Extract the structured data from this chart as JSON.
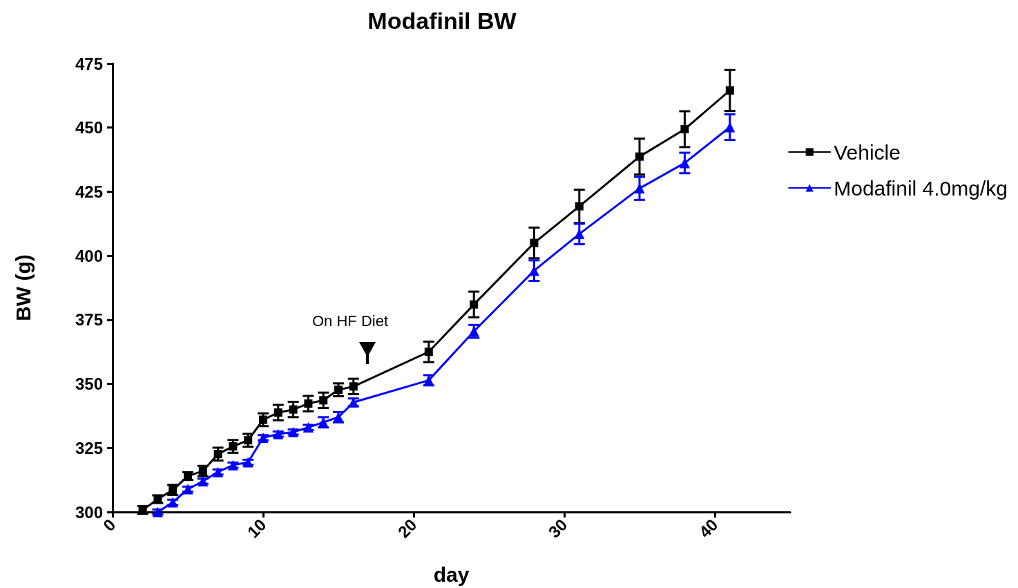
{
  "chart_data": {
    "type": "line",
    "title": "Modafinil BW",
    "xlabel": "day",
    "ylabel": "BW (g)",
    "xlim": [
      0,
      45
    ],
    "xticks": [
      0,
      10,
      20,
      30,
      40
    ],
    "ylim": [
      300,
      475
    ],
    "yticks": [
      300,
      325,
      350,
      375,
      400,
      425,
      450,
      475
    ],
    "grid": false,
    "legend": "right",
    "line_style": "solid",
    "annotations": [
      "On HF Diet"
    ],
    "series": [
      {
        "name": "Vehicle",
        "color": "#000000",
        "marker": "square",
        "x": [
          2,
          3,
          4,
          5,
          6,
          7,
          8,
          9,
          10,
          11,
          12,
          13,
          14,
          15,
          16,
          21,
          24,
          28,
          31,
          35,
          38,
          41
        ],
        "values": [
          300.8,
          305,
          308.6,
          314,
          316,
          322.6,
          325.6,
          328,
          336,
          338.8,
          340,
          342.3,
          343.6,
          347.7,
          349,
          362.5,
          381,
          405,
          419.3,
          438.7,
          449.4,
          464.5
        ],
        "errors": [
          1.5,
          1.5,
          2,
          1.5,
          2,
          2.5,
          2.5,
          2.5,
          2.5,
          3,
          3,
          3,
          3,
          2.5,
          3,
          4,
          5,
          6,
          6.5,
          7,
          7,
          8
        ]
      },
      {
        "name": "Modafinil 4.0mg/kg",
        "color": "#0000ff",
        "marker": "triangle",
        "x": [
          3,
          4,
          5,
          6,
          7,
          8,
          9,
          10,
          11,
          12,
          13,
          14,
          15,
          16,
          21,
          24,
          28,
          31,
          35,
          38,
          41
        ],
        "values": [
          300,
          303.8,
          308.9,
          312,
          315.6,
          318.3,
          319.4,
          329,
          330.4,
          331.2,
          333,
          335,
          337,
          342.8,
          351.4,
          370.5,
          394.2,
          408.5,
          426.3,
          436.2,
          450.2
        ],
        "errors": [
          1,
          1,
          1,
          1,
          1,
          1,
          1,
          1,
          1,
          1,
          1,
          2,
          2,
          1.5,
          2,
          2.5,
          4,
          4,
          4.5,
          4,
          5
        ]
      }
    ]
  }
}
